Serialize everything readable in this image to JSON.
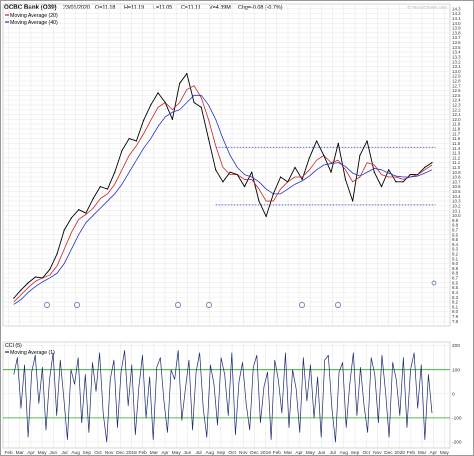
{
  "header": {
    "symbol": "OCBC Bank (O39)",
    "date": "23/01/2020",
    "open": "O=11.18",
    "high": "H=11.19",
    "low": "L=11.05",
    "close": "C=11.11",
    "volume": "V=4.39M",
    "change": "Chg=-0.08 (-0.7%)",
    "watermark": "© StockCharts.com"
  },
  "colors": {
    "price": "#000000",
    "ma20": "#cc2222",
    "ma40": "#2233cc",
    "channel": "#2a3fd8",
    "cci": "#1a2a6c",
    "band": "#22aa22",
    "grid": "#e3e3e3"
  },
  "chart_data": [
    {
      "type": "line",
      "legend": [
        "Moving Average (20)",
        "Moving Average (40)"
      ],
      "ylim": [
        7.7,
        14.4
      ],
      "yticks": [
        7.8,
        7.9,
        8.0,
        8.1,
        8.2,
        8.3,
        8.4,
        8.5,
        8.6,
        8.7,
        8.8,
        8.9,
        9.0,
        9.1,
        9.2,
        9.3,
        9.4,
        9.5,
        9.6,
        9.7,
        9.8,
        9.9,
        10.0,
        10.1,
        10.2,
        10.3,
        10.4,
        10.5,
        10.6,
        10.7,
        10.8,
        10.9,
        11.0,
        11.1,
        11.2,
        11.3,
        11.4,
        11.5,
        11.6,
        11.7,
        11.8,
        11.9,
        12.0,
        12.1,
        12.2,
        12.3,
        12.4,
        12.5,
        12.6,
        12.7,
        12.8,
        12.9,
        13.0,
        13.1,
        13.2,
        13.3,
        13.4,
        13.5,
        13.6,
        13.7,
        13.8,
        13.9,
        14.0,
        14.1,
        14.2,
        14.3
      ],
      "ytick_labels": [
        "7.8",
        "7.9",
        "8.0",
        "8.1",
        "8.2",
        "8.3",
        "8.4",
        "8.5",
        "8.6",
        "8.7",
        "8.8",
        "8.9",
        "9.0",
        "9.1",
        "9.2",
        "9.3",
        "9.4",
        "9.5",
        "9.6",
        "9.7",
        "9.8",
        "9.9",
        "10.0",
        "10.1",
        "10.2",
        "10.3",
        "10.4",
        "10.5",
        "10.6",
        "10.7",
        "10.8",
        "10.9",
        "11.0",
        "11.1",
        "11.2",
        "11.3",
        "11.4",
        "11.5",
        "11.6",
        "11.7",
        "11.8",
        "11.9",
        "12.0",
        "12.1",
        "12.2",
        "12.3",
        "12.4",
        "12.5",
        "12.6",
        "12.7",
        "12.8",
        "12.9",
        "13.0",
        "13.1",
        "13.2",
        "13.3",
        "13.4",
        "13.5",
        "13.6",
        "13.7",
        "13.8",
        "13.9",
        "14.0",
        "14.1",
        "14.2",
        "14.3"
      ],
      "x_labels": [
        "Feb",
        "Mar",
        "Apr",
        "May",
        "Jun",
        "Jul",
        "Aug",
        "Sep",
        "Oct",
        "Nov",
        "Dec",
        "2018",
        "Feb",
        "Mar",
        "Apr",
        "May",
        "Jun",
        "Jul",
        "Aug",
        "Sep",
        "Oct",
        "Nov",
        "Dec",
        "2019",
        "Feb",
        "Mar",
        "Apr",
        "May",
        "Jun",
        "Jul",
        "Aug",
        "Sep",
        "Oct",
        "Nov",
        "Dec",
        "2020",
        "Feb",
        "Mar",
        "Apr",
        "May"
      ],
      "x": [
        0,
        2,
        4,
        6,
        8,
        10,
        12,
        14,
        16,
        18,
        20,
        22,
        24,
        26,
        28,
        30,
        32,
        34,
        36,
        38,
        40,
        42,
        44,
        46,
        48,
        50,
        52,
        54,
        56,
        58,
        60,
        62,
        64,
        66,
        68,
        70,
        72,
        74,
        76,
        78,
        80,
        82,
        84,
        86,
        88,
        90,
        92,
        94,
        96,
        98,
        100,
        102,
        104,
        106,
        108,
        110,
        112,
        114,
        116
      ],
      "series": [
        {
          "name": "OCBC Bank (O39)",
          "values": [
            8.28,
            8.45,
            8.6,
            8.72,
            8.7,
            8.88,
            9.2,
            9.7,
            9.95,
            10.12,
            10.05,
            10.35,
            10.6,
            10.55,
            10.9,
            11.35,
            11.6,
            11.55,
            11.98,
            12.3,
            12.55,
            12.35,
            12.0,
            12.75,
            12.95,
            12.35,
            12.25,
            11.6,
            10.95,
            10.7,
            10.9,
            10.85,
            10.6,
            10.9,
            10.3,
            9.98,
            10.45,
            10.8,
            10.7,
            11.0,
            10.75,
            11.2,
            11.55,
            11.25,
            10.9,
            11.5,
            10.75,
            10.3,
            11.25,
            11.55,
            10.9,
            10.6,
            10.95,
            10.7,
            10.7,
            10.85,
            10.85,
            11.0,
            11.1
          ]
        },
        {
          "name": "Moving Average (20)",
          "values": [
            8.2,
            8.35,
            8.5,
            8.63,
            8.7,
            8.76,
            8.95,
            9.3,
            9.65,
            9.92,
            10.02,
            10.15,
            10.35,
            10.45,
            10.65,
            10.95,
            11.25,
            11.45,
            11.7,
            11.98,
            12.25,
            12.35,
            12.2,
            12.35,
            12.62,
            12.7,
            12.45,
            12.0,
            11.45,
            11.0,
            10.85,
            10.85,
            10.75,
            10.75,
            10.55,
            10.3,
            10.3,
            10.55,
            10.7,
            10.8,
            10.8,
            10.95,
            11.15,
            11.25,
            11.1,
            11.15,
            10.95,
            10.7,
            10.8,
            11.1,
            11.05,
            10.85,
            10.8,
            10.8,
            10.75,
            10.8,
            10.85,
            10.95,
            11.05
          ]
        },
        {
          "name": "Moving Average (40)",
          "values": [
            8.15,
            8.25,
            8.4,
            8.52,
            8.62,
            8.7,
            8.8,
            9.0,
            9.3,
            9.6,
            9.85,
            10.0,
            10.15,
            10.3,
            10.45,
            10.65,
            10.9,
            11.15,
            11.4,
            11.6,
            11.85,
            12.05,
            12.15,
            12.2,
            12.35,
            12.5,
            12.5,
            12.3,
            12.0,
            11.6,
            11.25,
            11.0,
            10.85,
            10.8,
            10.7,
            10.55,
            10.45,
            10.45,
            10.55,
            10.65,
            10.72,
            10.82,
            10.95,
            11.05,
            11.08,
            11.1,
            11.02,
            10.88,
            10.82,
            10.9,
            10.98,
            10.95,
            10.88,
            10.82,
            10.8,
            10.8,
            10.82,
            10.88,
            10.95
          ]
        }
      ],
      "channel": {
        "upper": 11.42,
        "lower": 10.22,
        "x_start": 56,
        "x_end": 117
      }
    },
    {
      "type": "line",
      "legend": [
        "CCI (5)",
        "Moving Average (1)"
      ],
      "ylim": [
        -225,
        215
      ],
      "yticks": [
        -200,
        -100,
        0,
        100,
        200
      ],
      "ytick_labels": [
        "-200",
        "-100",
        "0",
        "100",
        "200"
      ],
      "bands": [
        100,
        -100
      ],
      "series": [
        {
          "name": "CCI (5)",
          "values": [
            80,
            150,
            -60,
            120,
            -180,
            90,
            160,
            -40,
            110,
            -150,
            60,
            170,
            -90,
            140,
            -20,
            -190,
            100,
            40,
            150,
            -120,
            80,
            -160,
            130,
            10,
            170,
            -80,
            -200,
            60,
            140,
            -140,
            90,
            180,
            -50,
            120,
            -170,
            30,
            160,
            -100,
            70,
            -190,
            110,
            150,
            -30,
            -160,
            100,
            60,
            180,
            -110,
            20,
            140,
            -150,
            90,
            170,
            -60,
            -180,
            120,
            40,
            -130,
            150,
            80,
            -90,
            170,
            -170,
            50,
            130,
            -40,
            -150,
            110,
            160,
            -120,
            30,
            90,
            -190,
            140,
            60,
            -80,
            170,
            -140,
            100,
            20,
            -160,
            150,
            -30,
            120,
            -100,
            70,
            -180,
            140,
            160,
            -60,
            -200,
            90,
            130,
            -140,
            40,
            170,
            -90,
            110,
            -50,
            -160,
            150,
            80,
            -120,
            160,
            10,
            -180,
            130,
            60,
            -90,
            150,
            -140,
            100,
            170,
            -60,
            120,
            -190,
            80,
            -80
          ]
        }
      ]
    }
  ]
}
